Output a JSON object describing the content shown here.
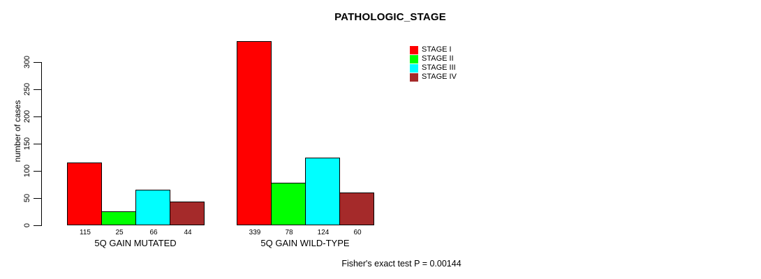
{
  "chart_data": {
    "type": "bar",
    "title": "PATHOLOGIC_STAGE",
    "ylabel": "number of cases",
    "xlabel": "",
    "ylim": [
      0,
      300
    ],
    "yticks": [
      0,
      50,
      100,
      150,
      200,
      250,
      300
    ],
    "grid": false,
    "bar_value_labels_shown": true,
    "categories": [
      "5Q GAIN MUTATED",
      "5Q GAIN WILD-TYPE"
    ],
    "series": [
      {
        "name": "STAGE I",
        "color": "#FF0000",
        "values": [
          115,
          339
        ]
      },
      {
        "name": "STAGE II",
        "color": "#00FF00",
        "values": [
          25,
          78
        ]
      },
      {
        "name": "STAGE III",
        "color": "#00FFFF",
        "values": [
          66,
          124
        ]
      },
      {
        "name": "STAGE IV",
        "color": "#A52A2A",
        "values": [
          44,
          60
        ]
      }
    ],
    "legend_position": "top-right",
    "annotation": "Fisher's exact test P = 0.00144"
  },
  "colors": {
    "background": "#FFFFFF",
    "axis": "#000000",
    "text": "#000000"
  }
}
